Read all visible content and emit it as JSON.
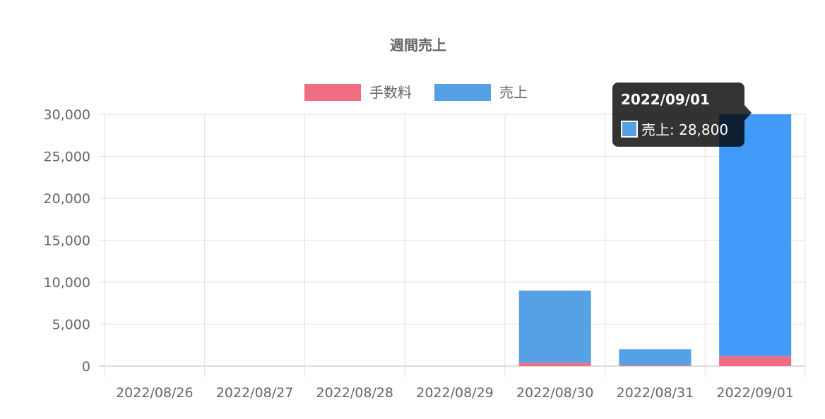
{
  "chart_data": {
    "type": "bar",
    "stacked": true,
    "title": "週間売上",
    "categories": [
      "2022/08/26",
      "2022/08/27",
      "2022/08/28",
      "2022/08/29",
      "2022/08/30",
      "2022/08/31",
      "2022/09/01"
    ],
    "series": [
      {
        "name": "手数料",
        "color": "#f06e84",
        "values": [
          0,
          0,
          0,
          0,
          400,
          100,
          1200
        ]
      },
      {
        "name": "売上",
        "color": "#56a1e5",
        "values": [
          0,
          0,
          0,
          0,
          8600,
          1900,
          28800
        ]
      }
    ],
    "ylim": [
      0,
      30000
    ],
    "yticks": [
      "30,000",
      "25,000",
      "20,000",
      "15,000",
      "10,000",
      "5,000",
      "0"
    ],
    "grid": true,
    "legend_position": "top",
    "highlight_color": "#419af7",
    "tooltip": {
      "title": "2022/09/01",
      "label": "売上: 28,800",
      "category": "2022/09/01",
      "series": "売上"
    }
  }
}
